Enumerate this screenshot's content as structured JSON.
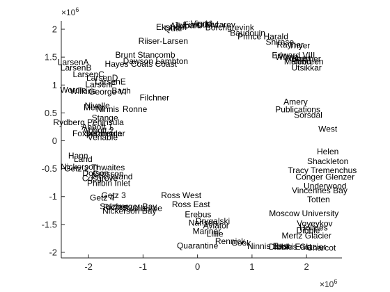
{
  "chart_data": {
    "type": "scatter",
    "title": "",
    "xlabel": "",
    "ylabel": "",
    "xlim": [
      -2500000,
      2650000
    ],
    "ylim": [
      -2100000,
      2150000
    ],
    "x_exponent_label": "×10^6",
    "y_exponent_label": "×10^6",
    "x_ticks": [
      -2000000,
      -1000000,
      0,
      1000000,
      2000000
    ],
    "x_tick_labels": [
      "-2",
      "-1",
      "0",
      "1",
      "2"
    ],
    "y_ticks": [
      -2000000,
      -1500000,
      -1000000,
      -500000,
      0,
      500000,
      1000000,
      1500000,
      2000000
    ],
    "y_tick_labels": [
      "-2",
      "-1.5",
      "-1",
      "-0.5",
      "0",
      "0.5",
      "1",
      "1.5",
      "2"
    ],
    "grid": false,
    "markers": "text labels only",
    "points": [
      {
        "label": "Fimbul",
        "x": -30000,
        "y": 2080000
      },
      {
        "label": "Jelbart",
        "x": -200000,
        "y": 2070000
      },
      {
        "label": "Atka",
        "x": -350000,
        "y": 2060000
      },
      {
        "label": "Ekstrom",
        "x": -480000,
        "y": 2040000
      },
      {
        "label": "Quar",
        "x": -440000,
        "y": 2010000
      },
      {
        "label": "Vigrid",
        "x": 70000,
        "y": 2100000
      },
      {
        "label": "Nivl",
        "x": 260000,
        "y": 2090000
      },
      {
        "label": "Lazarev",
        "x": 420000,
        "y": 2080000
      },
      {
        "label": "Borchgrevink",
        "x": 590000,
        "y": 2030000
      },
      {
        "label": "Baudouin",
        "x": 920000,
        "y": 1930000
      },
      {
        "label": "Prince Harald",
        "x": 1200000,
        "y": 1870000
      },
      {
        "label": "Shirase",
        "x": 1510000,
        "y": 1770000
      },
      {
        "label": "Rayner",
        "x": 1700000,
        "y": 1720000
      },
      {
        "label": "Thyer",
        "x": 1870000,
        "y": 1710000
      },
      {
        "label": "Edward VIII",
        "x": 1760000,
        "y": 1530000
      },
      {
        "label": "Wilma",
        "x": 1640000,
        "y": 1500000
      },
      {
        "label": "Robert",
        "x": 1850000,
        "y": 1480000
      },
      {
        "label": "Downer",
        "x": 2000000,
        "y": 1470000
      },
      {
        "label": "Rund",
        "x": 1900000,
        "y": 1420000
      },
      {
        "label": "Mulebreen",
        "x": 1950000,
        "y": 1420000
      },
      {
        "label": "Utsikkar",
        "x": 2000000,
        "y": 1310000
      },
      {
        "label": "Riiser-Larsen",
        "x": -630000,
        "y": 1790000
      },
      {
        "label": "Brunt Stancomb",
        "x": -960000,
        "y": 1540000
      },
      {
        "label": "Dawson Lambton",
        "x": -770000,
        "y": 1430000
      },
      {
        "label": "Hayes Coats Coast",
        "x": -1040000,
        "y": 1380000
      },
      {
        "label": "LarsenA",
        "x": -2280000,
        "y": 1410000
      },
      {
        "label": "LarsenB",
        "x": -2230000,
        "y": 1310000
      },
      {
        "label": "LarsenC",
        "x": -2000000,
        "y": 1190000
      },
      {
        "label": "LarsenD",
        "x": -1750000,
        "y": 1130000
      },
      {
        "label": "LarsenE",
        "x": -1600000,
        "y": 1060000
      },
      {
        "label": "LarsenF",
        "x": -1780000,
        "y": 1010000
      },
      {
        "label": "Wordie",
        "x": -2280000,
        "y": 910000
      },
      {
        "label": "Wilkins",
        "x": -2100000,
        "y": 890000
      },
      {
        "label": "George VI",
        "x": -1650000,
        "y": 880000
      },
      {
        "label": "Bach",
        "x": -1400000,
        "y": 900000
      },
      {
        "label": "Filchner",
        "x": -790000,
        "y": 770000
      },
      {
        "label": "Ronne",
        "x": -1150000,
        "y": 570000
      },
      {
        "label": "Nivelle",
        "x": -1840000,
        "y": 630000
      },
      {
        "label": "Mertz",
        "x": -1900000,
        "y": 600000
      },
      {
        "label": "Ninnis",
        "x": -1650000,
        "y": 570000
      },
      {
        "label": "Stange",
        "x": -1700000,
        "y": 410000
      },
      {
        "label": "Rydberg Peninsula",
        "x": -2000000,
        "y": 330000
      },
      {
        "label": "Abbott 1",
        "x": -1840000,
        "y": 250000
      },
      {
        "label": "Abbott 2",
        "x": -1820000,
        "y": 190000
      },
      {
        "label": "Foxpeninsula",
        "x": -1840000,
        "y": 130000
      },
      {
        "label": "Sulzberger",
        "x": -1700000,
        "y": 130000
      },
      {
        "label": "Venable",
        "x": -1740000,
        "y": 60000
      },
      {
        "label": "Amery",
        "x": 1800000,
        "y": 700000
      },
      {
        "label": "Publications",
        "x": 1840000,
        "y": 560000
      },
      {
        "label": "Sorsdal",
        "x": 2030000,
        "y": 460000
      },
      {
        "label": "West",
        "x": 2390000,
        "y": 210000
      },
      {
        "label": "Helen",
        "x": 2390000,
        "y": -190000
      },
      {
        "label": "Shackleton",
        "x": 2390000,
        "y": -370000
      },
      {
        "label": "Tracy Tremenchus",
        "x": 2290000,
        "y": -530000
      },
      {
        "label": "Conger Glenzer",
        "x": 2340000,
        "y": -650000
      },
      {
        "label": "Underwood",
        "x": 2340000,
        "y": -810000
      },
      {
        "label": "Vincennes Bay",
        "x": 2240000,
        "y": -890000
      },
      {
        "label": "Totten",
        "x": 2220000,
        "y": -1050000
      },
      {
        "label": "Moscow University",
        "x": 1950000,
        "y": -1300000
      },
      {
        "label": "Voyeykov",
        "x": 2150000,
        "y": -1480000
      },
      {
        "label": "Holmes",
        "x": 2130000,
        "y": -1560000
      },
      {
        "label": "Dibble",
        "x": 2030000,
        "y": -1610000
      },
      {
        "label": "Mertz Glacier",
        "x": 2000000,
        "y": -1700000
      },
      {
        "label": "Charcot",
        "x": 2270000,
        "y": -1920000
      },
      {
        "label": "Ninnis Glacier",
        "x": 1880000,
        "y": -1900000
      },
      {
        "label": "Hann",
        "x": -2190000,
        "y": -270000
      },
      {
        "label": "Land",
        "x": -2100000,
        "y": -330000
      },
      {
        "label": "Nickerson",
        "x": -2170000,
        "y": -470000
      },
      {
        "label": "Getz 2",
        "x": -2220000,
        "y": -500000
      },
      {
        "label": "Thwaites",
        "x": -1640000,
        "y": -480000
      },
      {
        "label": "Dotson",
        "x": -1870000,
        "y": -580000
      },
      {
        "label": "Crosson",
        "x": -1640000,
        "y": -590000
      },
      {
        "label": "Pine Island",
        "x": -1570000,
        "y": -640000
      },
      {
        "label": "Cosgrove",
        "x": -1790000,
        "y": -670000
      },
      {
        "label": "Philbin Inlet",
        "x": -1630000,
        "y": -760000
      },
      {
        "label": "Getz 3",
        "x": -1540000,
        "y": -980000
      },
      {
        "label": "Getz 4",
        "x": -1750000,
        "y": -1020000
      },
      {
        "label": "Ross West",
        "x": -300000,
        "y": -980000
      },
      {
        "label": "Ross East",
        "x": -120000,
        "y": -1140000
      },
      {
        "label": "Richter",
        "x": -1490000,
        "y": -1190000
      },
      {
        "label": "Sulzberger Bay",
        "x": -1270000,
        "y": -1180000
      },
      {
        "label": "Swinburne",
        "x": -1010000,
        "y": -1210000
      },
      {
        "label": "Nickerson Bay",
        "x": -1250000,
        "y": -1260000
      },
      {
        "label": "Erebus",
        "x": 10000,
        "y": -1320000
      },
      {
        "label": "Drygalski",
        "x": 280000,
        "y": -1440000
      },
      {
        "label": "Nansen",
        "x": 100000,
        "y": -1470000
      },
      {
        "label": "Aviator",
        "x": 340000,
        "y": -1520000
      },
      {
        "label": "Mariner",
        "x": 170000,
        "y": -1620000
      },
      {
        "label": "Lillie",
        "x": 320000,
        "y": -1670000
      },
      {
        "label": "Rennick",
        "x": 600000,
        "y": -1800000
      },
      {
        "label": "Cook",
        "x": 800000,
        "y": -1830000
      },
      {
        "label": "Quarantine",
        "x": 0,
        "y": -1880000
      },
      {
        "label": "Ninnis East",
        "x": 1300000,
        "y": -1890000
      },
      {
        "label": "Dibble East",
        "x": 1700000,
        "y": -1900000
      }
    ]
  }
}
